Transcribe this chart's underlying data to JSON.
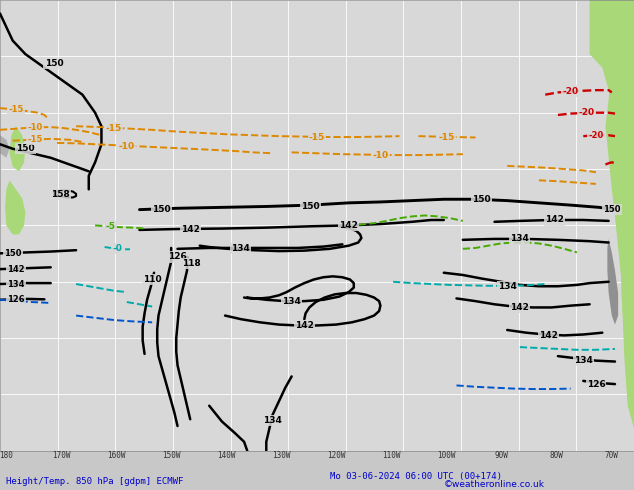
{
  "title_left": "Height/Temp. 850 hPa [gdpm] ECMWF",
  "title_right": "Mo 03-06-2024 06:00 UTC (00+174)",
  "credit": "©weatheronline.co.uk",
  "bg_color": "#c8c8c8",
  "ocean_color": "#d8d8d8",
  "land_color_green": "#a8d878",
  "land_color_dark": "#888888",
  "grid_color": "#ffffff",
  "fig_width": 6.34,
  "fig_height": 4.9,
  "dpi": 100,
  "title_color": "#0000cc",
  "lon_labels": [
    "180",
    "170W",
    "160W",
    "150W",
    "140W",
    "130W",
    "120W",
    "110W",
    "100W",
    "90W",
    "80W",
    "70W"
  ],
  "black_lw": 1.8,
  "temp_lw": 1.4
}
